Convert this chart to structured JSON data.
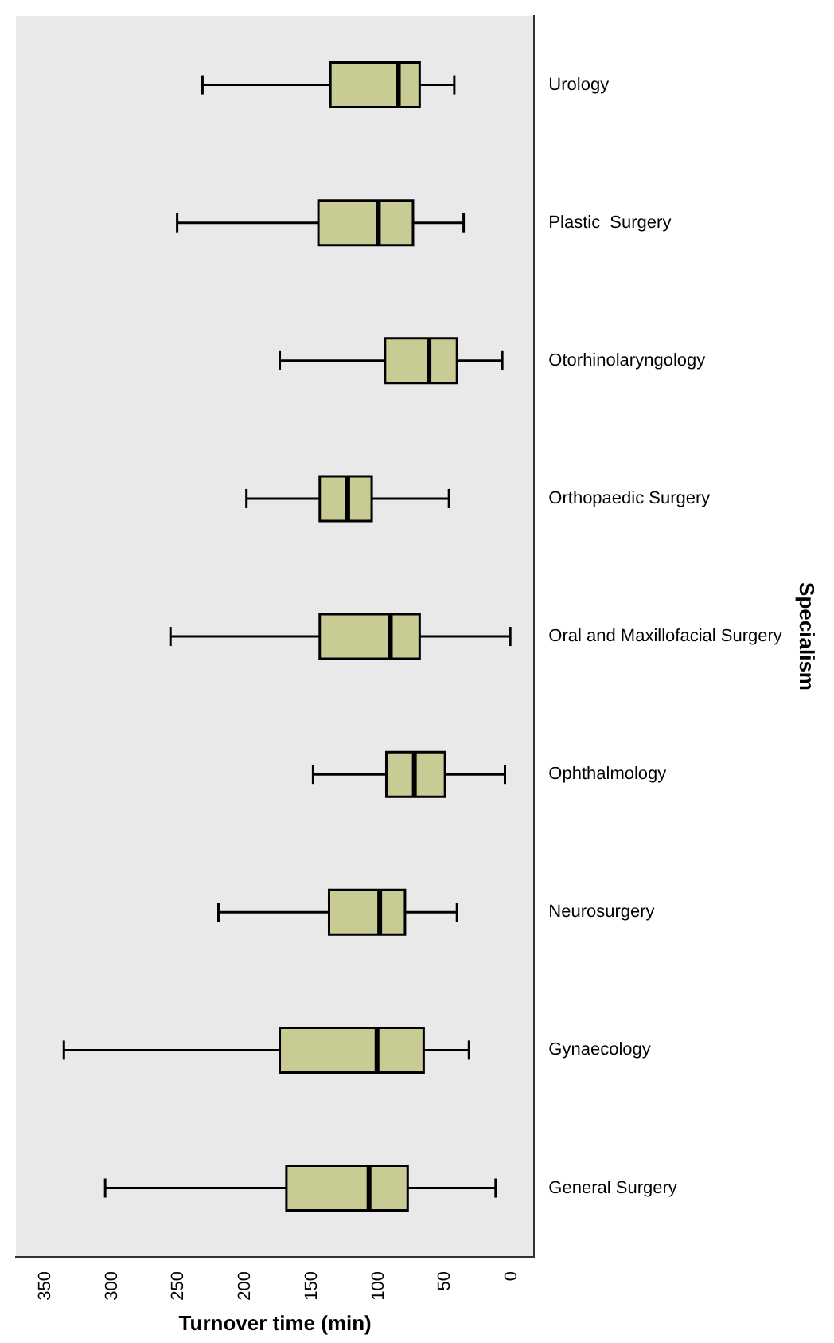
{
  "chart_data": {
    "type": "box",
    "orientation": "horizontal",
    "xlabel": "Turnover time (min)",
    "ylabel": "Specialism",
    "categories": [
      "Urology",
      "Plastic  Surgery",
      "Otorhinolaryngology",
      "Orthopaedic Surgery",
      "Oral and Maxillofacial Surgery",
      "Ophthalmology",
      "Neurosurgery",
      "Gynaecology",
      "General Surgery"
    ],
    "color": "#c8cc94",
    "boxes": [
      {
        "low": 43,
        "q1": 69,
        "median": 85,
        "q3": 136,
        "high": 232
      },
      {
        "low": 36,
        "q1": 74,
        "median": 100,
        "q3": 145,
        "high": 251
      },
      {
        "low": 7,
        "q1": 41,
        "median": 62,
        "q3": 95,
        "high": 174
      },
      {
        "low": 47,
        "q1": 105,
        "median": 123,
        "q3": 144,
        "high": 199
      },
      {
        "low": 1,
        "q1": 69,
        "median": 91,
        "q3": 144,
        "high": 256
      },
      {
        "low": 5,
        "q1": 50,
        "median": 73,
        "q3": 94,
        "high": 149
      },
      {
        "low": 41,
        "q1": 80,
        "median": 99,
        "q3": 137,
        "high": 220
      },
      {
        "low": 32,
        "q1": 66,
        "median": 101,
        "q3": 174,
        "high": 336
      },
      {
        "low": 12,
        "q1": 78,
        "median": 107,
        "q3": 169,
        "high": 305
      }
    ],
    "xlim": [
      372,
      -17
    ],
    "xticks": [
      350,
      300,
      250,
      200,
      150,
      100,
      50,
      0
    ],
    "grid": false,
    "legend": false
  }
}
